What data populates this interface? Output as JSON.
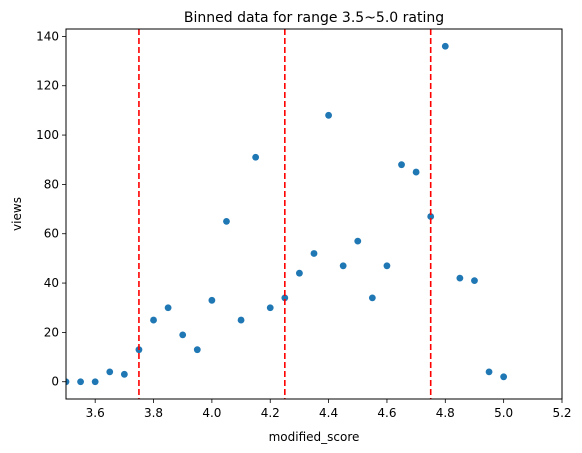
{
  "chart_data": {
    "type": "scatter",
    "title": "Binned data for range 3.5~5.0 rating",
    "xlabel": "modified_score",
    "ylabel": "views",
    "xlim": [
      3.5,
      5.2
    ],
    "ylim": [
      -7,
      143
    ],
    "xticks": [
      3.6,
      3.8,
      4.0,
      4.2,
      4.4,
      4.6,
      4.8,
      5.0,
      5.2
    ],
    "xtick_labels": [
      "3.6",
      "3.8",
      "4.0",
      "4.2",
      "4.4",
      "4.6",
      "4.8",
      "5.0",
      "5.2"
    ],
    "yticks": [
      0,
      20,
      40,
      60,
      80,
      100,
      120,
      140
    ],
    "ytick_labels": [
      "0",
      "20",
      "40",
      "60",
      "80",
      "100",
      "120",
      "140"
    ],
    "vlines": [
      3.75,
      4.25,
      4.75
    ],
    "grid": false,
    "colors": {
      "points": "#1f77b4",
      "vlines": "#ff0000"
    },
    "points": [
      {
        "x": 3.5,
        "y": 0
      },
      {
        "x": 3.55,
        "y": 0
      },
      {
        "x": 3.6,
        "y": 0
      },
      {
        "x": 3.65,
        "y": 4
      },
      {
        "x": 3.7,
        "y": 3
      },
      {
        "x": 3.75,
        "y": 13
      },
      {
        "x": 3.8,
        "y": 25
      },
      {
        "x": 3.85,
        "y": 30
      },
      {
        "x": 3.9,
        "y": 19
      },
      {
        "x": 3.95,
        "y": 13
      },
      {
        "x": 4.0,
        "y": 33
      },
      {
        "x": 4.05,
        "y": 65
      },
      {
        "x": 4.1,
        "y": 25
      },
      {
        "x": 4.15,
        "y": 91
      },
      {
        "x": 4.2,
        "y": 30
      },
      {
        "x": 4.25,
        "y": 34
      },
      {
        "x": 4.3,
        "y": 44
      },
      {
        "x": 4.35,
        "y": 52
      },
      {
        "x": 4.4,
        "y": 108
      },
      {
        "x": 4.45,
        "y": 47
      },
      {
        "x": 4.5,
        "y": 57
      },
      {
        "x": 4.55,
        "y": 34
      },
      {
        "x": 4.6,
        "y": 47
      },
      {
        "x": 4.65,
        "y": 88
      },
      {
        "x": 4.7,
        "y": 85
      },
      {
        "x": 4.75,
        "y": 67
      },
      {
        "x": 4.8,
        "y": 136
      },
      {
        "x": 4.85,
        "y": 42
      },
      {
        "x": 4.9,
        "y": 41
      },
      {
        "x": 4.95,
        "y": 4
      },
      {
        "x": 5.0,
        "y": 2
      }
    ]
  }
}
